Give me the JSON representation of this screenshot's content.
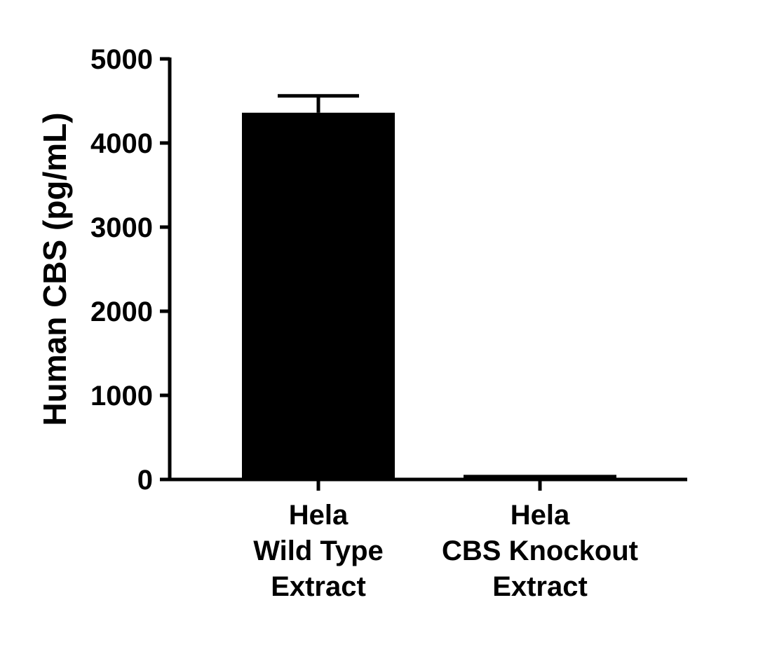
{
  "chart_data": {
    "type": "bar",
    "title": "",
    "xlabel": "",
    "ylabel": "Human CBS (pg/mL)",
    "ylim": [
      0,
      5000
    ],
    "yticks": [
      0,
      1000,
      2000,
      3000,
      4000,
      5000
    ],
    "grid": false,
    "categories": [
      [
        "Hela",
        "Wild Type",
        "Extract"
      ],
      [
        "Hela",
        "CBS Knockout",
        "Extract"
      ]
    ],
    "values": [
      4360,
      55
    ],
    "error_plus": [
      200,
      0
    ],
    "colors": {
      "bar": "#000000",
      "axis": "#000000"
    }
  }
}
